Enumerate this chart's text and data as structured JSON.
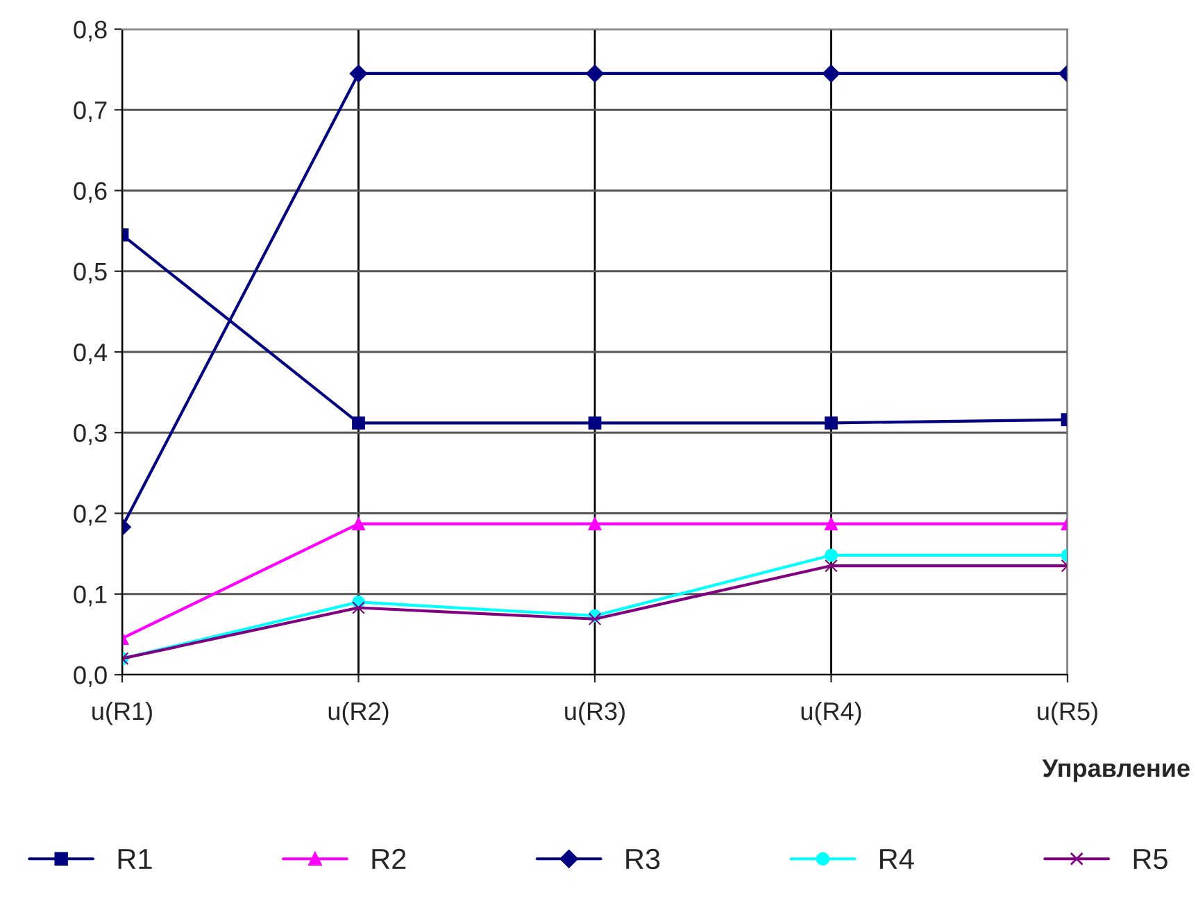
{
  "chart_data": {
    "type": "line",
    "xlabel": "Управление",
    "categories": [
      "u(R1)",
      "u(R2)",
      "u(R3)",
      "u(R4)",
      "u(R5)"
    ],
    "series": [
      {
        "name": "R1",
        "color": "#000080",
        "marker": "square",
        "values": [
          0.545,
          0.312,
          0.312,
          0.312,
          0.316
        ]
      },
      {
        "name": "R2",
        "color": "#ff00ff",
        "marker": "triangle",
        "values": [
          0.045,
          0.187,
          0.187,
          0.187,
          0.187
        ]
      },
      {
        "name": "R3",
        "color": "#000080",
        "marker": "diamond",
        "values": [
          0.183,
          0.745,
          0.745,
          0.745,
          0.745
        ]
      },
      {
        "name": "R4",
        "color": "#00ffff",
        "marker": "circle",
        "values": [
          0.02,
          0.09,
          0.073,
          0.148,
          0.148
        ]
      },
      {
        "name": "R5",
        "color": "#800080",
        "marker": "cross",
        "values": [
          0.02,
          0.083,
          0.069,
          0.135,
          0.135
        ]
      }
    ],
    "ylim": [
      0,
      0.8
    ],
    "yticks": [
      {
        "value": 0,
        "label": "0,0"
      },
      {
        "value": 0.1,
        "label": "0,1"
      },
      {
        "value": 0.2,
        "label": "0,2"
      },
      {
        "value": 0.3,
        "label": "0,3"
      },
      {
        "value": 0.4,
        "label": "0,4"
      },
      {
        "value": 0.5,
        "label": "0,5"
      },
      {
        "value": 0.6,
        "label": "0,6"
      },
      {
        "value": 0.7,
        "label": "0,7"
      },
      {
        "value": 0.8,
        "label": "0,8"
      }
    ],
    "grid": true,
    "legend": "bottom"
  }
}
